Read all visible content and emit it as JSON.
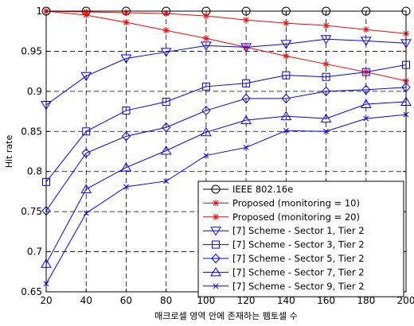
{
  "chart_data": {
    "type": "line",
    "xlabel": "매크로셀 영역 안에 존재하는 펨토셀 수",
    "ylabel": "Hit rate",
    "xlim": [
      20,
      200
    ],
    "ylim": [
      0.65,
      1.0
    ],
    "xticks": [
      20,
      40,
      60,
      80,
      100,
      120,
      140,
      160,
      180,
      200
    ],
    "yticks": [
      0.65,
      0.7,
      0.75,
      0.8,
      0.85,
      0.9,
      0.95,
      1
    ],
    "xtick_labels": [
      "20",
      "40",
      "60",
      "80",
      "100",
      "120",
      "140",
      "160",
      "180",
      "200"
    ],
    "ytick_labels": [
      "0.65",
      "0.7",
      "0.75",
      "0.8",
      "0.85",
      "0.9",
      "0.95",
      "1"
    ],
    "grid": true,
    "legend_position": "lower-right",
    "x": [
      20,
      40,
      60,
      80,
      100,
      120,
      140,
      160,
      180,
      200
    ],
    "series": [
      {
        "name": "IEEE 802.16e",
        "color": "#000000",
        "marker": "circle",
        "values": [
          1.0,
          1.0,
          1.0,
          1.0,
          1.0,
          1.0,
          1.0,
          1.0,
          1.0,
          1.0
        ]
      },
      {
        "name": "Proposed (monitoring = 10)",
        "color": "#ff0000",
        "marker": "star",
        "values": [
          1.0,
          0.995,
          0.986,
          0.976,
          0.966,
          0.955,
          0.944,
          0.934,
          0.924,
          0.913
        ]
      },
      {
        "name": "Proposed (monitoring = 20)",
        "color": "#ff0000",
        "marker": "star",
        "values": [
          1.0,
          0.999,
          0.998,
          0.997,
          0.994,
          0.989,
          0.985,
          0.982,
          0.977,
          0.972
        ]
      },
      {
        "name": "[7] Scheme - Sector 1, Tier 2",
        "color": "#0000ff",
        "marker": "triangle-down",
        "values": [
          0.883,
          0.919,
          0.941,
          0.949,
          0.957,
          0.955,
          0.959,
          0.965,
          0.963,
          0.96
        ]
      },
      {
        "name": "[7] Scheme - Sector 3, Tier 2",
        "color": "#0000ff",
        "marker": "square",
        "values": [
          0.787,
          0.85,
          0.876,
          0.887,
          0.906,
          0.91,
          0.92,
          0.918,
          0.924,
          0.933
        ]
      },
      {
        "name": "[7] Scheme - Sector 5, Tier 2",
        "color": "#0000ff",
        "marker": "diamond",
        "values": [
          0.751,
          0.823,
          0.844,
          0.855,
          0.876,
          0.891,
          0.891,
          0.9,
          0.902,
          0.905
        ]
      },
      {
        "name": "[7] Scheme - Sector 7, Tier 2",
        "color": "#0000ff",
        "marker": "triangle-up",
        "values": [
          0.685,
          0.778,
          0.805,
          0.826,
          0.849,
          0.864,
          0.869,
          0.866,
          0.884,
          0.887
        ]
      },
      {
        "name": "[7] Scheme - Sector 9, Tier 2",
        "color": "#0000ff",
        "marker": "x",
        "values": [
          0.66,
          0.748,
          0.781,
          0.788,
          0.82,
          0.83,
          0.851,
          0.85,
          0.866,
          0.871
        ]
      }
    ]
  }
}
